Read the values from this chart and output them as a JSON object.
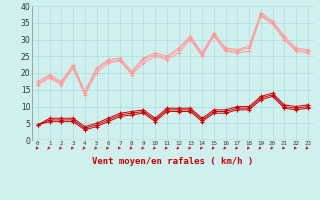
{
  "xlabel": "Vent moyen/en rafales ( km/h )",
  "bg_color": "#d0f0f0",
  "grid_color": "#aadddd",
  "x": [
    0,
    1,
    2,
    3,
    4,
    5,
    6,
    7,
    8,
    9,
    10,
    11,
    12,
    13,
    14,
    15,
    16,
    17,
    18,
    19,
    20,
    21,
    22,
    23
  ],
  "rafales_lines": [
    [
      16.5,
      18.5,
      16.5,
      21.5,
      13.5,
      20.0,
      23.0,
      23.5,
      19.5,
      23.0,
      25.0,
      24.0,
      26.0,
      30.0,
      25.0,
      31.0,
      26.5,
      26.0,
      26.5,
      37.0,
      34.5,
      30.0,
      26.5,
      26.0
    ],
    [
      17.0,
      19.0,
      17.0,
      22.0,
      14.0,
      21.0,
      23.5,
      24.0,
      20.0,
      24.0,
      25.5,
      24.5,
      27.0,
      30.5,
      25.5,
      31.5,
      27.0,
      26.5,
      27.5,
      37.5,
      35.0,
      30.5,
      27.0,
      26.5
    ],
    [
      17.5,
      19.5,
      17.5,
      22.5,
      14.5,
      21.5,
      24.0,
      24.5,
      20.5,
      24.5,
      26.0,
      25.0,
      27.5,
      31.0,
      26.0,
      32.0,
      27.5,
      27.0,
      28.0,
      38.0,
      35.5,
      31.0,
      27.5,
      27.0
    ]
  ],
  "moyen_lines": [
    [
      4.5,
      5.5,
      5.5,
      5.5,
      3.0,
      4.0,
      5.5,
      7.0,
      7.5,
      8.0,
      5.5,
      8.5,
      8.5,
      8.5,
      5.5,
      8.0,
      8.0,
      9.0,
      9.0,
      12.0,
      13.0,
      9.5,
      9.0,
      9.5
    ],
    [
      4.5,
      6.0,
      6.0,
      6.0,
      3.5,
      4.5,
      6.0,
      7.5,
      8.0,
      8.5,
      6.0,
      9.0,
      9.0,
      9.0,
      6.0,
      8.5,
      8.5,
      9.5,
      9.5,
      12.5,
      13.5,
      10.0,
      9.5,
      10.0
    ],
    [
      4.5,
      6.5,
      6.5,
      6.5,
      4.0,
      5.0,
      6.5,
      8.0,
      8.5,
      9.0,
      6.5,
      9.5,
      9.5,
      9.5,
      6.5,
      9.0,
      9.0,
      10.0,
      10.0,
      13.0,
      14.0,
      10.5,
      10.0,
      10.5
    ]
  ],
  "rafales_color": "#ff9999",
  "moyen_color": "#cc0000",
  "arrow_color": "#cc0000",
  "ylim": [
    0,
    40
  ],
  "ytick_vals": [
    0,
    5,
    10,
    15,
    20,
    25,
    30,
    35,
    40
  ],
  "ytick_labels": [
    "0",
    "5",
    "10",
    "15",
    "20",
    "25",
    "30",
    "35",
    "40"
  ],
  "figw": 3.2,
  "figh": 2.0,
  "dpi": 100
}
